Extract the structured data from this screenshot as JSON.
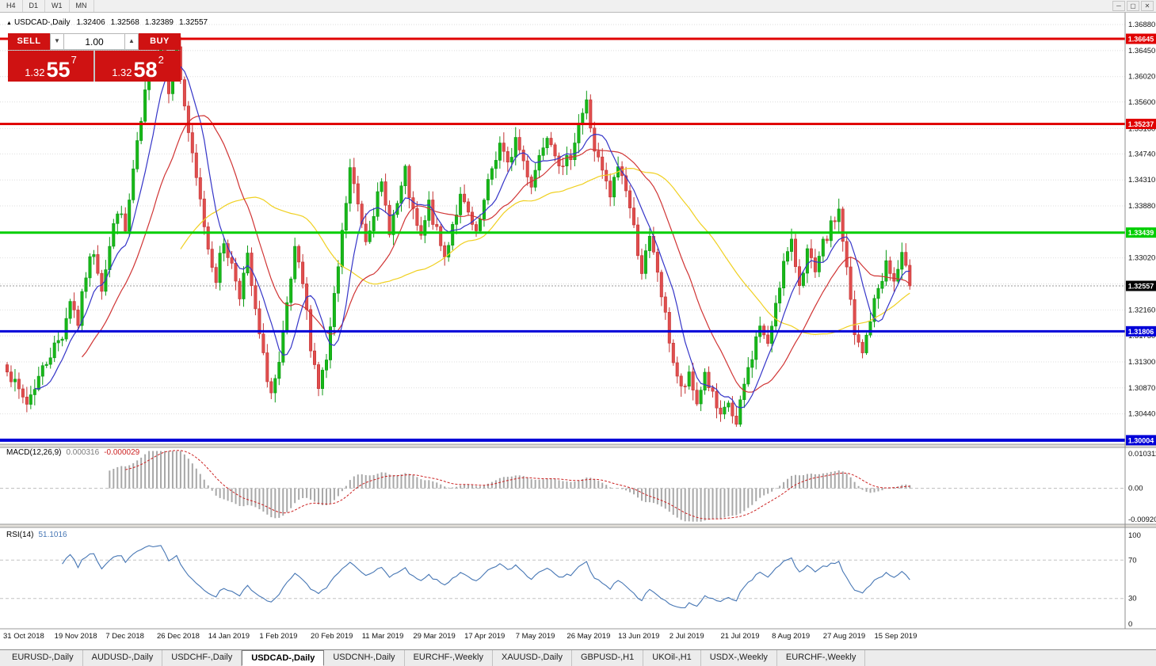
{
  "toolbar": {
    "timeframes": [
      "H4",
      "D1",
      "W1",
      "MN"
    ],
    "window_controls": [
      "minimize",
      "restore",
      "close"
    ]
  },
  "chart": {
    "title": {
      "expand_icon": "▲",
      "symbol_period": "USDCAD-,Daily",
      "open": "1.32406",
      "high": "1.32568",
      "low": "1.32389",
      "close": "1.32557"
    },
    "trade_panel": {
      "accent": "#cf1212",
      "sell_label": "SELL",
      "buy_label": "BUY",
      "volume": "1.00",
      "sell_price": {
        "prefix": "1.32",
        "big": "55",
        "sup": "7"
      },
      "buy_price": {
        "prefix": "1.32",
        "big": "58",
        "sup": "2"
      }
    }
  },
  "chart_data": {
    "type": "candlestick",
    "symbol": "USDCAD",
    "period": "Daily",
    "y_range": [
      1.2995,
      1.3692
    ],
    "price_axis_labels": [
      "1.36880",
      "1.36450",
      "1.36020",
      "1.35600",
      "1.35160",
      "1.34740",
      "1.34310",
      "1.33880",
      "1.33450",
      "1.33020",
      "1.32590",
      "1.32160",
      "1.31730",
      "1.31300",
      "1.30870",
      "1.30440"
    ],
    "x_axis_dates": [
      "31 Oct 2018",
      "19 Nov 2018",
      "7 Dec 2018",
      "26 Dec 2018",
      "14 Jan 2019",
      "1 Feb 2019",
      "20 Feb 2019",
      "11 Mar 2019",
      "29 Mar 2019",
      "17 Apr 2019",
      "7 May 2019",
      "26 May 2019",
      "13 Jun 2019",
      "2 Jul 2019",
      "21 Jul 2019",
      "8 Aug 2019",
      "27 Aug 2019",
      "15 Sep 2019"
    ],
    "candles_total": 230,
    "close_path_anchors": [
      [
        0,
        1.3125
      ],
      [
        2,
        1.309
      ],
      [
        5,
        1.3062
      ],
      [
        8,
        1.3105
      ],
      [
        11,
        1.3145
      ],
      [
        14,
        1.3175
      ],
      [
        16,
        1.3235
      ],
      [
        18,
        1.3195
      ],
      [
        20,
        1.3275
      ],
      [
        22,
        1.3315
      ],
      [
        24,
        1.3255
      ],
      [
        26,
        1.332
      ],
      [
        28,
        1.3385
      ],
      [
        30,
        1.3345
      ],
      [
        32,
        1.3445
      ],
      [
        34,
        1.3525
      ],
      [
        36,
        1.3615
      ],
      [
        39,
        1.3655
      ],
      [
        41,
        1.3585
      ],
      [
        43,
        1.3645
      ],
      [
        45,
        1.3555
      ],
      [
        47,
        1.3465
      ],
      [
        49,
        1.3395
      ],
      [
        51,
        1.332
      ],
      [
        53,
        1.327
      ],
      [
        55,
        1.333
      ],
      [
        57,
        1.329
      ],
      [
        59,
        1.3245
      ],
      [
        61,
        1.33
      ],
      [
        63,
        1.321
      ],
      [
        65,
        1.3135
      ],
      [
        67,
        1.3078
      ],
      [
        69,
        1.312
      ],
      [
        71,
        1.322
      ],
      [
        73,
        1.331
      ],
      [
        75,
        1.3258
      ],
      [
        77,
        1.316
      ],
      [
        79,
        1.309
      ],
      [
        81,
        1.3132
      ],
      [
        83,
        1.3232
      ],
      [
        85,
        1.334
      ],
      [
        87,
        1.3448
      ],
      [
        89,
        1.339
      ],
      [
        91,
        1.3335
      ],
      [
        93,
        1.3382
      ],
      [
        95,
        1.342
      ],
      [
        97,
        1.3352
      ],
      [
        99,
        1.339
      ],
      [
        101,
        1.3442
      ],
      [
        103,
        1.3372
      ],
      [
        105,
        1.3332
      ],
      [
        107,
        1.339
      ],
      [
        109,
        1.3342
      ],
      [
        111,
        1.3302
      ],
      [
        113,
        1.336
      ],
      [
        115,
        1.34
      ],
      [
        117,
        1.3372
      ],
      [
        119,
        1.3335
      ],
      [
        121,
        1.3392
      ],
      [
        123,
        1.345
      ],
      [
        125,
        1.349
      ],
      [
        127,
        1.3452
      ],
      [
        129,
        1.35
      ],
      [
        131,
        1.3462
      ],
      [
        133,
        1.3425
      ],
      [
        135,
        1.3472
      ],
      [
        137,
        1.3512
      ],
      [
        139,
        1.3482
      ],
      [
        141,
        1.3445
      ],
      [
        143,
        1.3475
      ],
      [
        145,
        1.3525
      ],
      [
        147,
        1.3558
      ],
      [
        149,
        1.3482
      ],
      [
        151,
        1.3442
      ],
      [
        153,
        1.3402
      ],
      [
        155,
        1.3455
      ],
      [
        157,
        1.3418
      ],
      [
        159,
        1.335
      ],
      [
        161,
        1.3282
      ],
      [
        163,
        1.333
      ],
      [
        165,
        1.328
      ],
      [
        167,
        1.3202
      ],
      [
        169,
        1.3132
      ],
      [
        171,
        1.3082
      ],
      [
        173,
        1.3102
      ],
      [
        175,
        1.3062
      ],
      [
        177,
        1.3112
      ],
      [
        179,
        1.3072
      ],
      [
        181,
        1.3032
      ],
      [
        183,
        1.3062
      ],
      [
        185,
        1.3022
      ],
      [
        187,
        1.3092
      ],
      [
        189,
        1.3142
      ],
      [
        191,
        1.3192
      ],
      [
        193,
        1.3152
      ],
      [
        195,
        1.3232
      ],
      [
        197,
        1.3292
      ],
      [
        199,
        1.3322
      ],
      [
        201,
        1.3262
      ],
      [
        203,
        1.3312
      ],
      [
        205,
        1.3272
      ],
      [
        207,
        1.3322
      ],
      [
        209,
        1.3352
      ],
      [
        211,
        1.3382
      ],
      [
        213,
        1.3282
      ],
      [
        215,
        1.3172
      ],
      [
        217,
        1.3142
      ],
      [
        219,
        1.3202
      ],
      [
        221,
        1.3252
      ],
      [
        223,
        1.3292
      ],
      [
        225,
        1.3262
      ],
      [
        227,
        1.3302
      ],
      [
        229,
        1.32557
      ]
    ],
    "candle_colors": {
      "up": "#18b818",
      "up_stroke": "#0c9a14",
      "down": "#e04e4e",
      "down_stroke": "#c43333"
    },
    "moving_averages": [
      {
        "period": 8,
        "color": "#3535c8"
      },
      {
        "period": 20,
        "color": "#d03434"
      },
      {
        "period": 45,
        "color": "#f0d020"
      }
    ],
    "horizontal_lines": [
      {
        "price": 1.36645,
        "label": "1.36645",
        "color": "#e00000",
        "width": 3
      },
      {
        "price": 1.35237,
        "label": "1.35237",
        "color": "#e00000",
        "width": 3
      },
      {
        "price": 1.33439,
        "label": "1.33439",
        "color": "#00ce00",
        "width": 3
      },
      {
        "price": 1.31806,
        "label": "1.31806",
        "color": "#0000d8",
        "width": 3
      },
      {
        "price": 1.30004,
        "label": "1.30004",
        "color": "#0000d8",
        "width": 4
      }
    ],
    "current_price": {
      "value": 1.32557,
      "label": "1.32557",
      "tag_color": "#000000"
    },
    "macd": {
      "label": "MACD(12,26,9)",
      "value_main": "0.000316",
      "value_signal": "-0.000029",
      "axis_max": "0.010311",
      "axis_zero": "0.00",
      "axis_min": "-0.00920",
      "range": [
        -0.0092,
        0.010311
      ],
      "histogram_color": "#a8a8a8",
      "signal_color": "#cc2222"
    },
    "rsi": {
      "label": "RSI(14)",
      "value": "51.1016",
      "period": 14,
      "axis_labels": [
        "100",
        "70",
        "30",
        "0"
      ],
      "levels": [
        70,
        30
      ],
      "line_color": "#4676b4"
    }
  },
  "tabs": {
    "active_index": 3,
    "items": [
      "EURUSD-,Daily",
      "AUDUSD-,Daily",
      "USDCHF-,Daily",
      "USDCAD-,Daily",
      "USDCNH-,Daily",
      "EURCHF-,Weekly",
      "XAUUSD-,Daily",
      "GBPUSD-,H1",
      "UKOil-,H1",
      "USDX-,Weekly",
      "EURCHF-,Weekly"
    ]
  }
}
